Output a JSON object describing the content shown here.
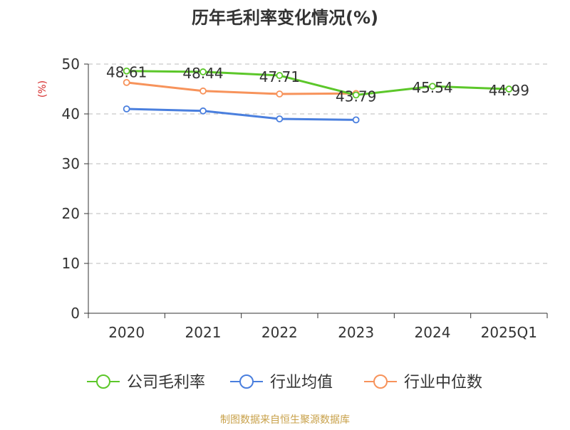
{
  "chart_data": {
    "type": "line",
    "title": "历年毛利率变化情况(%)",
    "ylabel": "(%)",
    "xlabel": "",
    "categories": [
      "2020",
      "2021",
      "2022",
      "2023",
      "2024",
      "2025Q1"
    ],
    "ylim": [
      0,
      50
    ],
    "yticks": [
      0,
      10,
      20,
      30,
      40,
      50
    ],
    "grid": true,
    "legend_position": "bottom",
    "series": [
      {
        "name": "公司毛利率",
        "color": "#5cc72a",
        "values": [
          48.61,
          48.44,
          47.71,
          43.79,
          45.54,
          44.99
        ],
        "labels": [
          "48.61",
          "48.44",
          "47.71",
          "43.79",
          "45.54",
          "44.99"
        ]
      },
      {
        "name": "行业均值",
        "color": "#4a7fde",
        "values": [
          41.0,
          40.6,
          39.0,
          38.8,
          null,
          null
        ],
        "labels": []
      },
      {
        "name": "行业中位数",
        "color": "#f7935b",
        "values": [
          46.3,
          44.6,
          44.0,
          44.1,
          null,
          null
        ],
        "labels": []
      }
    ],
    "source": "制图数据来自恒生聚源数据库"
  },
  "colors": {
    "title": "#333333",
    "axis": "#333333",
    "ylabel": "#d62b2b",
    "grid": "#bbbbbb",
    "source": "#c8a14a"
  }
}
